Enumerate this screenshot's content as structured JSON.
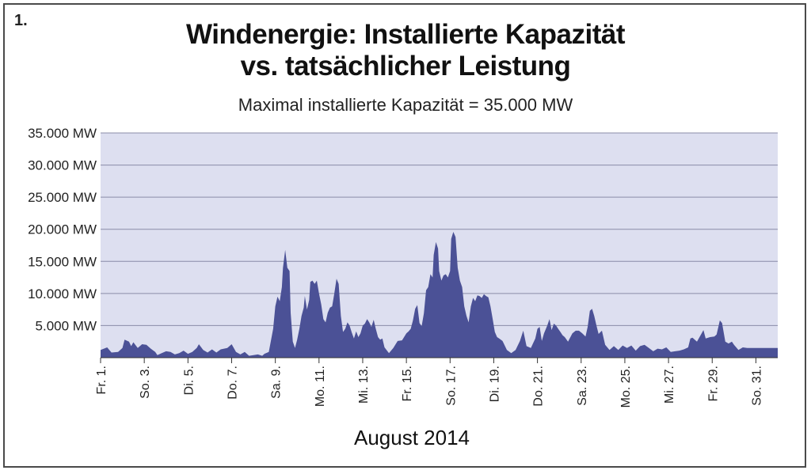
{
  "figure_label": "1.",
  "title_line1": "Windenergie: Installierte Kapazität",
  "title_line2": "vs. tatsächlicher Leistung",
  "subtitle": "Maximal installierte Kapazität = 35.000 MW",
  "colors": {
    "area_fill": "#4b5196",
    "plot_background": "#dddff0",
    "gridline": "#8a8ca8",
    "axis": "#333333"
  },
  "chart_data": {
    "type": "area",
    "title": "Windenergie: Installierte Kapazität vs. tatsächlicher Leistung",
    "subtitle": "Maximal installierte Kapazität = 35.000 MW",
    "xlabel": "August 2014",
    "ylabel": "",
    "ylim": [
      0,
      35000
    ],
    "xlim": [
      1,
      32
    ],
    "grid": true,
    "y_ticks": [
      {
        "value": 5000,
        "label": "5.000 MW"
      },
      {
        "value": 10000,
        "label": "10.000 MW"
      },
      {
        "value": 15000,
        "label": "15.000 MW"
      },
      {
        "value": 20000,
        "label": "20.000 MW"
      },
      {
        "value": 25000,
        "label": "25.000 MW"
      },
      {
        "value": 30000,
        "label": "30.000 MW"
      },
      {
        "value": 35000,
        "label": "35.000 MW"
      }
    ],
    "x_ticks": [
      {
        "value": 1,
        "label": "Fr. 1."
      },
      {
        "value": 3,
        "label": "So. 3."
      },
      {
        "value": 5,
        "label": "Di. 5."
      },
      {
        "value": 7,
        "label": "Do. 7."
      },
      {
        "value": 9,
        "label": "Sa. 9."
      },
      {
        "value": 11,
        "label": "Mo. 11."
      },
      {
        "value": 13,
        "label": "Mi. 13."
      },
      {
        "value": 15,
        "label": "Fr. 15."
      },
      {
        "value": 17,
        "label": "So. 17."
      },
      {
        "value": 19,
        "label": "Di. 19."
      },
      {
        "value": 21,
        "label": "Do. 21."
      },
      {
        "value": 23,
        "label": "Sa. 23."
      },
      {
        "value": 25,
        "label": "Mo. 25."
      },
      {
        "value": 27,
        "label": "Mi. 27."
      },
      {
        "value": 29,
        "label": "Fr. 29."
      },
      {
        "value": 31,
        "label": "So. 31."
      }
    ],
    "series": [
      {
        "values": [
          [
            1.0,
            1200
          ],
          [
            1.3,
            1600
          ],
          [
            1.5,
            800
          ],
          [
            1.8,
            900
          ],
          [
            2.0,
            1500
          ],
          [
            2.1,
            2800
          ],
          [
            2.3,
            2500
          ],
          [
            2.4,
            1800
          ],
          [
            2.5,
            2400
          ],
          [
            2.7,
            1500
          ],
          [
            2.9,
            2100
          ],
          [
            3.1,
            2000
          ],
          [
            3.3,
            1400
          ],
          [
            3.5,
            900
          ],
          [
            3.6,
            400
          ],
          [
            3.8,
            700
          ],
          [
            4.0,
            1000
          ],
          [
            4.2,
            900
          ],
          [
            4.4,
            500
          ],
          [
            4.6,
            700
          ],
          [
            4.8,
            1100
          ],
          [
            5.0,
            600
          ],
          [
            5.2,
            900
          ],
          [
            5.4,
            1500
          ],
          [
            5.5,
            2100
          ],
          [
            5.7,
            1200
          ],
          [
            5.9,
            800
          ],
          [
            6.1,
            1300
          ],
          [
            6.3,
            800
          ],
          [
            6.5,
            1300
          ],
          [
            6.8,
            1500
          ],
          [
            7.0,
            2100
          ],
          [
            7.2,
            900
          ],
          [
            7.4,
            500
          ],
          [
            7.6,
            900
          ],
          [
            7.8,
            300
          ],
          [
            8.0,
            400
          ],
          [
            8.2,
            500
          ],
          [
            8.4,
            300
          ],
          [
            8.5,
            600
          ],
          [
            8.7,
            900
          ],
          [
            8.9,
            4500
          ],
          [
            9.0,
            8000
          ],
          [
            9.1,
            9500
          ],
          [
            9.2,
            8800
          ],
          [
            9.3,
            11000
          ],
          [
            9.35,
            14000
          ],
          [
            9.45,
            16800
          ],
          [
            9.55,
            14000
          ],
          [
            9.65,
            13500
          ],
          [
            9.7,
            7000
          ],
          [
            9.8,
            2500
          ],
          [
            9.9,
            1500
          ],
          [
            10.0,
            2800
          ],
          [
            10.1,
            4500
          ],
          [
            10.2,
            6500
          ],
          [
            10.3,
            7800
          ],
          [
            10.35,
            9600
          ],
          [
            10.45,
            7500
          ],
          [
            10.55,
            9000
          ],
          [
            10.6,
            11800
          ],
          [
            10.7,
            12000
          ],
          [
            10.8,
            11500
          ],
          [
            10.9,
            12000
          ],
          [
            11.0,
            10000
          ],
          [
            11.1,
            8300
          ],
          [
            11.2,
            6000
          ],
          [
            11.3,
            5500
          ],
          [
            11.4,
            7000
          ],
          [
            11.5,
            7800
          ],
          [
            11.6,
            8000
          ],
          [
            11.7,
            10000
          ],
          [
            11.8,
            12300
          ],
          [
            11.9,
            11500
          ],
          [
            12.0,
            6500
          ],
          [
            12.1,
            4000
          ],
          [
            12.2,
            4500
          ],
          [
            12.3,
            5500
          ],
          [
            12.4,
            5000
          ],
          [
            12.5,
            3900
          ],
          [
            12.6,
            3000
          ],
          [
            12.7,
            4100
          ],
          [
            12.8,
            3200
          ],
          [
            12.9,
            3800
          ],
          [
            13.0,
            5000
          ],
          [
            13.1,
            5300
          ],
          [
            13.2,
            6000
          ],
          [
            13.3,
            5500
          ],
          [
            13.4,
            4800
          ],
          [
            13.5,
            5900
          ],
          [
            13.6,
            4500
          ],
          [
            13.7,
            3200
          ],
          [
            13.8,
            2800
          ],
          [
            13.9,
            3000
          ],
          [
            14.0,
            1600
          ],
          [
            14.2,
            700
          ],
          [
            14.4,
            1500
          ],
          [
            14.6,
            2600
          ],
          [
            14.8,
            2700
          ],
          [
            15.0,
            3800
          ],
          [
            15.1,
            4100
          ],
          [
            15.2,
            4500
          ],
          [
            15.3,
            5800
          ],
          [
            15.4,
            7600
          ],
          [
            15.5,
            8200
          ],
          [
            15.6,
            5400
          ],
          [
            15.7,
            4900
          ],
          [
            15.8,
            6900
          ],
          [
            15.9,
            10500
          ],
          [
            16.0,
            11000
          ],
          [
            16.1,
            13000
          ],
          [
            16.2,
            12500
          ],
          [
            16.25,
            16000
          ],
          [
            16.35,
            18000
          ],
          [
            16.45,
            17000
          ],
          [
            16.5,
            13500
          ],
          [
            16.6,
            12000
          ],
          [
            16.7,
            12800
          ],
          [
            16.8,
            13000
          ],
          [
            16.9,
            12500
          ],
          [
            17.0,
            13500
          ],
          [
            17.05,
            18500
          ],
          [
            17.15,
            19600
          ],
          [
            17.25,
            18800
          ],
          [
            17.35,
            14000
          ],
          [
            17.45,
            12000
          ],
          [
            17.55,
            11000
          ],
          [
            17.65,
            8000
          ],
          [
            17.75,
            6500
          ],
          [
            17.85,
            5500
          ],
          [
            17.95,
            8000
          ],
          [
            18.05,
            9300
          ],
          [
            18.15,
            8800
          ],
          [
            18.25,
            9700
          ],
          [
            18.35,
            9600
          ],
          [
            18.45,
            9300
          ],
          [
            18.55,
            9900
          ],
          [
            18.65,
            9600
          ],
          [
            18.75,
            9400
          ],
          [
            18.85,
            8000
          ],
          [
            18.95,
            6000
          ],
          [
            19.05,
            4000
          ],
          [
            19.15,
            3200
          ],
          [
            19.25,
            3000
          ],
          [
            19.4,
            2600
          ],
          [
            19.6,
            1200
          ],
          [
            19.8,
            700
          ],
          [
            20.0,
            1200
          ],
          [
            20.2,
            2600
          ],
          [
            20.35,
            4200
          ],
          [
            20.5,
            1800
          ],
          [
            20.7,
            1500
          ],
          [
            20.9,
            3000
          ],
          [
            21.0,
            4500
          ],
          [
            21.1,
            4800
          ],
          [
            21.2,
            2600
          ],
          [
            21.3,
            3800
          ],
          [
            21.45,
            5000
          ],
          [
            21.55,
            6000
          ],
          [
            21.65,
            4300
          ],
          [
            21.75,
            5300
          ],
          [
            21.85,
            5000
          ],
          [
            21.95,
            4500
          ],
          [
            22.05,
            4000
          ],
          [
            22.15,
            3500
          ],
          [
            22.25,
            3200
          ],
          [
            22.4,
            2500
          ],
          [
            22.6,
            3800
          ],
          [
            22.75,
            4200
          ],
          [
            22.9,
            4200
          ],
          [
            23.05,
            3800
          ],
          [
            23.2,
            3300
          ],
          [
            23.3,
            4800
          ],
          [
            23.4,
            7300
          ],
          [
            23.5,
            7600
          ],
          [
            23.6,
            6500
          ],
          [
            23.7,
            5000
          ],
          [
            23.8,
            3700
          ],
          [
            23.95,
            4200
          ],
          [
            24.1,
            2000
          ],
          [
            24.3,
            1200
          ],
          [
            24.5,
            1800
          ],
          [
            24.7,
            1200
          ],
          [
            24.9,
            1900
          ],
          [
            25.1,
            1500
          ],
          [
            25.3,
            1900
          ],
          [
            25.5,
            1100
          ],
          [
            25.7,
            1800
          ],
          [
            25.9,
            2000
          ],
          [
            26.1,
            1500
          ],
          [
            26.3,
            1000
          ],
          [
            26.5,
            1400
          ],
          [
            26.7,
            1300
          ],
          [
            26.9,
            1600
          ],
          [
            27.1,
            900
          ],
          [
            27.3,
            1000
          ],
          [
            27.5,
            1100
          ],
          [
            27.7,
            1300
          ],
          [
            27.9,
            1600
          ],
          [
            28.0,
            3000
          ],
          [
            28.1,
            3100
          ],
          [
            28.3,
            2500
          ],
          [
            28.5,
            3700
          ],
          [
            28.6,
            4300
          ],
          [
            28.7,
            3000
          ],
          [
            28.9,
            3200
          ],
          [
            29.1,
            3300
          ],
          [
            29.2,
            3600
          ],
          [
            29.35,
            5800
          ],
          [
            29.45,
            5400
          ],
          [
            29.6,
            2500
          ],
          [
            29.75,
            2200
          ],
          [
            29.9,
            2500
          ],
          [
            30.0,
            2000
          ],
          [
            30.2,
            1200
          ],
          [
            30.4,
            1600
          ],
          [
            30.6,
            1500
          ]
        ]
      }
    ]
  }
}
